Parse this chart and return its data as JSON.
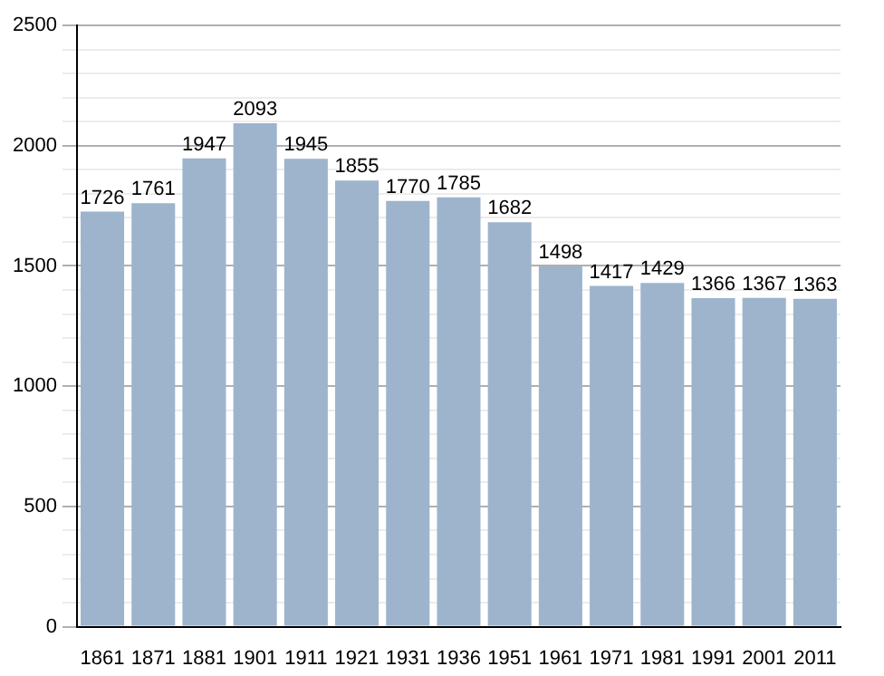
{
  "chart_data": {
    "type": "bar",
    "categories": [
      "1861",
      "1871",
      "1881",
      "1901",
      "1911",
      "1921",
      "1931",
      "1936",
      "1951",
      "1961",
      "1971",
      "1981",
      "1991",
      "2001",
      "2011"
    ],
    "values": [
      1726,
      1761,
      1947,
      2093,
      1945,
      1855,
      1770,
      1785,
      1682,
      1498,
      1417,
      1429,
      1366,
      1367,
      1363
    ],
    "color": "#9db4cc",
    "ylim": [
      0,
      2500
    ],
    "yticks": [
      0,
      {
        "value": 100,
        "label": null
      },
      {
        "value": 200,
        "label": null
      },
      {
        "value": 300,
        "label": null
      },
      {
        "value": 400,
        "label": null
      },
      500,
      {
        "value": 600,
        "label": null
      },
      {
        "value": 700,
        "label": null
      },
      {
        "value": 800,
        "label": null
      },
      {
        "value": 900,
        "label": null
      },
      1000,
      {
        "value": 1100,
        "label": null
      },
      {
        "value": 1200,
        "label": null
      },
      {
        "value": 1300,
        "label": null
      },
      {
        "value": 1400,
        "label": null
      },
      1500,
      {
        "value": 1600,
        "label": null
      },
      {
        "value": 1700,
        "label": null
      },
      {
        "value": 1800,
        "label": null
      },
      {
        "value": 1900,
        "label": null
      },
      2000,
      {
        "value": 2100,
        "label": null
      },
      {
        "value": 2200,
        "label": null
      },
      {
        "value": 2300,
        "label": null
      },
      {
        "value": 2400,
        "label": null
      },
      2500
    ],
    "grid": "y",
    "data_labels": true,
    "legend": false
  }
}
